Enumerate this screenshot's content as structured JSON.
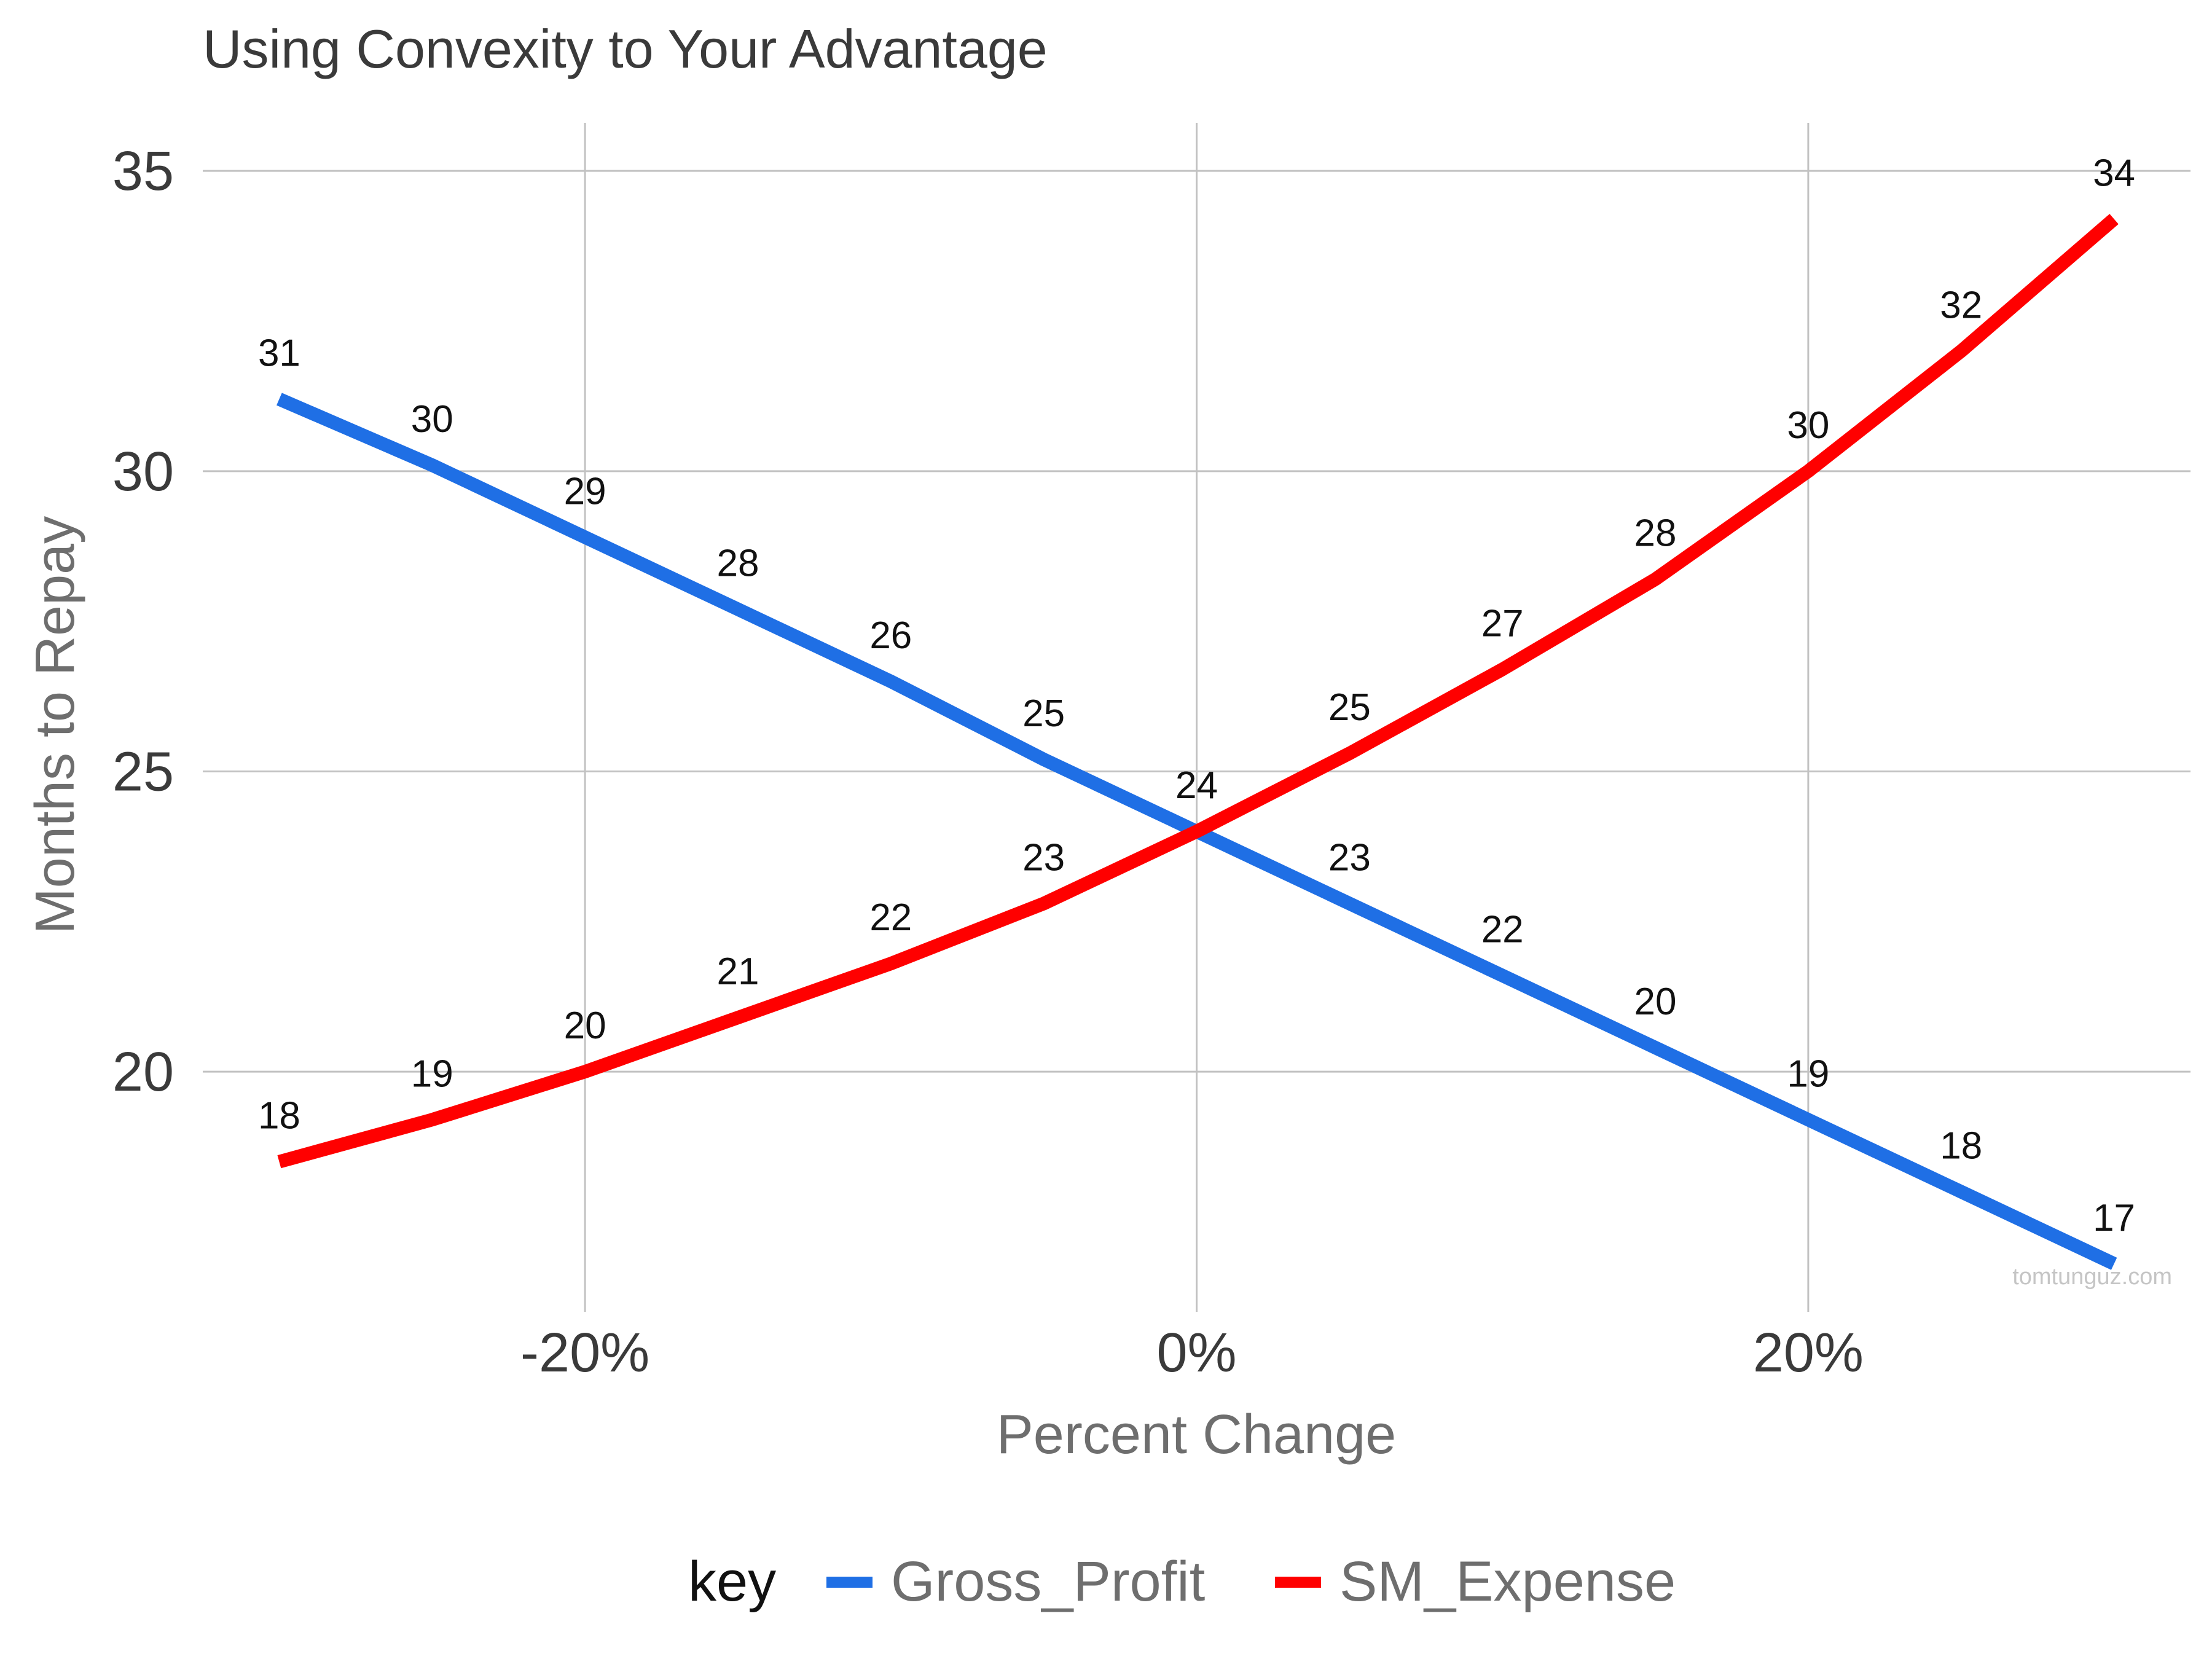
{
  "chart_data": {
    "type": "line",
    "title": "Using Convexity to Your Advantage",
    "xlabel": "Percent Change",
    "ylabel": "Months to Repay",
    "x": [
      -30,
      -25,
      -20,
      -15,
      -10,
      -5,
      0,
      5,
      10,
      15,
      20,
      25,
      30
    ],
    "xlim": [
      -32.5,
      32.5
    ],
    "ylim": [
      16.0,
      35.8
    ],
    "x_ticks": [
      {
        "value": -20,
        "label": "-20%"
      },
      {
        "value": 0,
        "label": "0%"
      },
      {
        "value": 20,
        "label": "20%"
      }
    ],
    "y_ticks": [
      {
        "value": 20,
        "label": "20"
      },
      {
        "value": 25,
        "label": "25"
      },
      {
        "value": 30,
        "label": "30"
      },
      {
        "value": 35,
        "label": "35"
      }
    ],
    "grid": true,
    "legend": {
      "title": "key",
      "position": "bottom"
    },
    "series": [
      {
        "name": "Gross_Profit",
        "color": "#1f6fe5",
        "values": [
          31.2,
          30.1,
          28.9,
          27.7,
          26.5,
          25.2,
          24.0,
          22.8,
          21.6,
          20.4,
          19.2,
          18.0,
          16.8
        ],
        "labels": [
          "31",
          "30",
          "29",
          "28",
          "26",
          "25",
          "24",
          "23",
          "22",
          "20",
          "19",
          "18",
          "17"
        ]
      },
      {
        "name": "SM_Expense",
        "color": "#ff0000",
        "values": [
          18.5,
          19.2,
          20.0,
          20.9,
          21.8,
          22.8,
          24.0,
          25.3,
          26.7,
          28.2,
          30.0,
          32.0,
          34.2
        ],
        "labels": [
          "18",
          "19",
          "20",
          "21",
          "22",
          "23",
          "24",
          "25",
          "27",
          "28",
          "30",
          "32",
          "34"
        ]
      }
    ],
    "watermark": "tomtunguz.com"
  }
}
